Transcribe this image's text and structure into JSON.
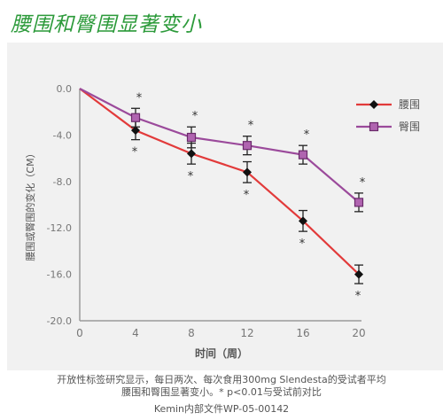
{
  "title": "腰围和臀围显著变小",
  "caption_line1": "开放性标签研究显示，每日两次、每次食用300mg Slendesta的受试者平均",
  "caption_line2": "腰围和臀围显著变小。* p<0.01与受试前对比",
  "doc_id": "Kemin内部文件WP-05-00142",
  "colors": {
    "waist": "#e23a3a",
    "hip": "#9b4a9b",
    "title": "#2c9a3a"
  },
  "chart_data": {
    "type": "line",
    "xlabel": "时间（周）",
    "ylabel": "腰围或臀围的变化（CM）",
    "x": [
      0,
      4,
      8,
      12,
      16,
      20
    ],
    "x_ticks": [
      "0",
      "4",
      "8",
      "12",
      "16",
      "20"
    ],
    "y_ticks": [
      "0.0",
      "-4.0",
      "-8.0",
      "-12.0",
      "-16.0",
      "-20.0"
    ],
    "ylim": [
      -20,
      0
    ],
    "xlim": [
      0,
      20
    ],
    "legend_position": "top-right",
    "significance_marker": "*",
    "series": [
      {
        "name": "腰围",
        "marker": "diamond",
        "color": "#e23a3a",
        "values": [
          0,
          -3.6,
          -5.6,
          -7.2,
          -11.4,
          -16.0
        ],
        "error": [
          0,
          0.8,
          0.9,
          0.9,
          0.9,
          0.8
        ]
      },
      {
        "name": "臀围",
        "marker": "square",
        "color": "#9b4a9b",
        "values": [
          0,
          -2.5,
          -4.2,
          -4.9,
          -5.7,
          -9.8
        ],
        "error": [
          0,
          0.8,
          0.9,
          0.8,
          0.8,
          0.8
        ]
      }
    ]
  }
}
